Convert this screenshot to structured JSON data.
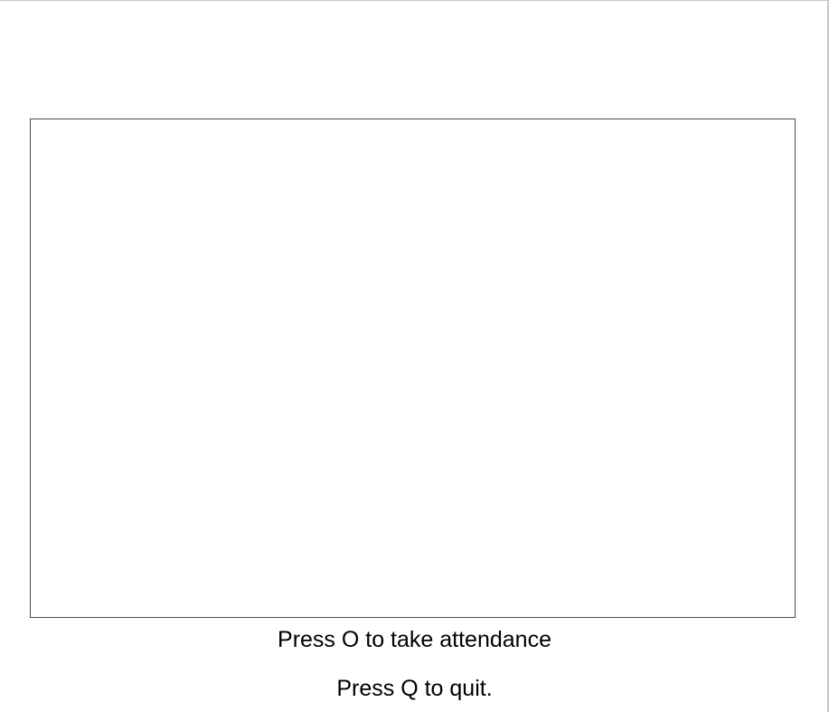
{
  "instructions": {
    "take_attendance": "Press O to take attendance",
    "quit": "Press Q to quit."
  }
}
